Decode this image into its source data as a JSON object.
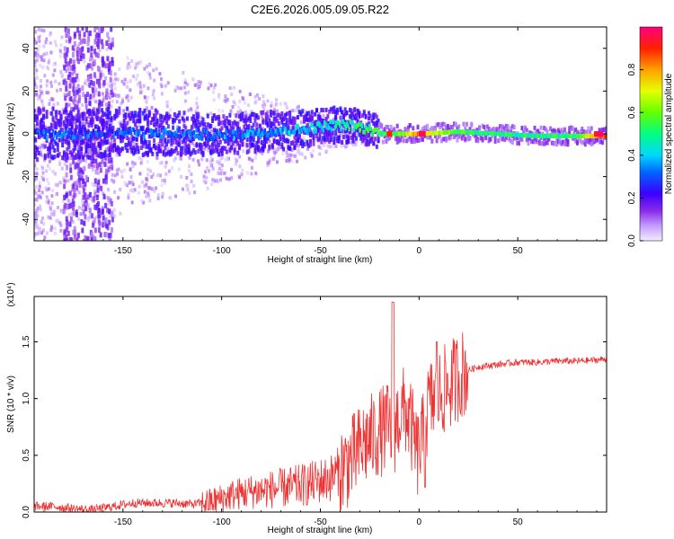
{
  "title": "C2E6.2026.005.09.05.R22",
  "chart_data": [
    {
      "type": "heatmap",
      "name": "spectrogram",
      "xlabel": "Height of straight line (km)",
      "ylabel": "Frequency (Hz)",
      "xlim": [
        -195,
        95
      ],
      "ylim": [
        -50,
        50
      ],
      "xticks": [
        -150,
        -100,
        -50,
        0,
        50
      ],
      "xtick_labels": [
        "-150",
        "-100",
        "-50",
        "0",
        "50"
      ],
      "yticks": [
        -40,
        -20,
        0,
        20,
        40
      ],
      "ytick_labels": [
        "-40",
        "-20",
        "0",
        "20",
        "40"
      ],
      "colorbar": {
        "label": "Normalized spectral amplitude",
        "range": [
          0,
          1
        ],
        "ticks": [
          0.0,
          0.2,
          0.4,
          0.6,
          0.8
        ],
        "tick_labels": [
          "0.0",
          "0.2",
          "0.4",
          "0.6",
          "0.8"
        ]
      },
      "ridge": {
        "x": [
          -195,
          -170,
          -150,
          -120,
          -100,
          -80,
          -60,
          -45,
          -35,
          -25,
          -18,
          -10,
          0,
          20,
          40,
          60,
          80,
          95
        ],
        "frequency": [
          0,
          0,
          1,
          0,
          -1,
          1,
          2,
          4,
          4,
          2,
          0,
          0,
          0,
          1,
          0,
          -1,
          -1,
          -1
        ],
        "amplitude": [
          0.3,
          0.28,
          0.3,
          0.3,
          0.32,
          0.36,
          0.4,
          0.45,
          0.48,
          0.52,
          0.55,
          0.6,
          0.8,
          0.55,
          0.5,
          0.5,
          0.55,
          0.9
        ]
      }
    },
    {
      "type": "line",
      "name": "snr",
      "xlabel": "Height of straight line (km)",
      "ylabel": "SNR (10 * v/v)",
      "exponent_label": "(x10⁴)",
      "xlim": [
        -195,
        95
      ],
      "ylim": [
        0,
        1.9
      ],
      "xticks": [
        -150,
        -100,
        -50,
        0,
        50
      ],
      "xtick_labels": [
        "-150",
        "-100",
        "-50",
        "0",
        "50"
      ],
      "yticks": [
        0.0,
        0.5,
        1.0,
        1.5
      ],
      "ytick_labels": [
        "0.0",
        "0.5",
        "1.0",
        "1.5"
      ],
      "color": "#ee3333",
      "series": [
        {
          "name": "SNR",
          "x": [
            -195,
            -185,
            -175,
            -165,
            -155,
            -145,
            -135,
            -125,
            -115,
            -105,
            -95,
            -85,
            -75,
            -65,
            -55,
            -45,
            -38,
            -32,
            -28,
            -24,
            -20,
            -16,
            -13,
            -10,
            -7,
            -4,
            -1,
            2,
            5,
            8,
            11,
            15,
            20,
            25,
            30,
            40,
            50,
            60,
            70,
            80,
            90,
            95
          ],
          "y": [
            0.05,
            0.05,
            0.03,
            0.02,
            0.05,
            0.08,
            0.08,
            0.08,
            0.07,
            0.09,
            0.15,
            0.18,
            0.2,
            0.22,
            0.25,
            0.3,
            0.4,
            0.5,
            0.6,
            0.65,
            0.7,
            0.75,
            0.7,
            0.85,
            0.9,
            0.75,
            0.5,
            0.65,
            0.95,
            1.0,
            1.05,
            1.1,
            1.2,
            1.25,
            1.28,
            1.3,
            1.32,
            1.32,
            1.33,
            1.33,
            1.34,
            1.35
          ]
        }
      ]
    }
  ]
}
